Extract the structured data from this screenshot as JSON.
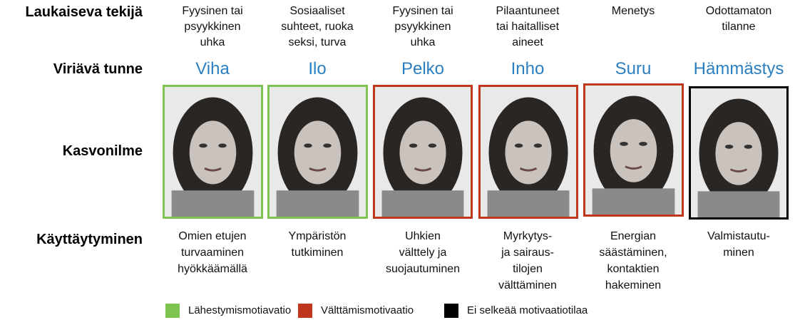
{
  "row_labels": [
    "Laukaiseva tekijä",
    "Viriävä  tunne",
    "Kasvonilme",
    "Käyttäytyminen"
  ],
  "columns": [
    {
      "trigger": [
        "Fyysinen tai",
        "psyykkinen",
        "uhka"
      ],
      "emotion": "Viha",
      "behavior": [
        "Omien etujen",
        "turvaaminen",
        "hyökkäämällä"
      ],
      "motivation": 0
    },
    {
      "trigger": [
        "Sosiaaliset",
        "suhteet, ruoka",
        "seksi, turva"
      ],
      "emotion": "Ilo",
      "behavior": [
        "Ympäristön",
        "tutkiminen"
      ],
      "motivation": 0
    },
    {
      "trigger": [
        "Fyysinen tai",
        "psyykkinen",
        "uhka"
      ],
      "emotion": "Pelko",
      "behavior": [
        "Uhkien",
        "välttely ja",
        "suojautuminen"
      ],
      "motivation": 1
    },
    {
      "trigger": [
        "Pilaantuneet",
        "tai haitalliset",
        "aineet"
      ],
      "emotion": "Inho",
      "behavior": [
        "Myrkytys-",
        "ja sairaus-",
        "tilojen",
        "välttäminen"
      ],
      "motivation": 1
    },
    {
      "trigger": [
        "Menetys"
      ],
      "emotion": "Suru",
      "behavior": [
        "Energian",
        "säästäminen,",
        "kontaktien",
        "hakeminen"
      ],
      "motivation": 1
    },
    {
      "trigger": [
        "Odottamaton",
        "tilanne"
      ],
      "emotion": "Hämmästys",
      "behavior": [
        "Valmistautu-",
        "minen"
      ],
      "motivation": 2
    }
  ],
  "legend": [
    {
      "name": "Lähestymismotiavatio",
      "color": "#7dc450"
    },
    {
      "name": "Välttämismotivaatio",
      "color": "#c0371d"
    },
    {
      "name": "Ei selkeää motivaatiotilaa",
      "color": "#000000"
    }
  ]
}
